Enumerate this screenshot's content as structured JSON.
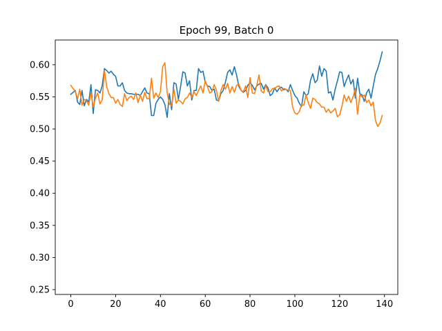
{
  "chart_data": {
    "type": "line",
    "title": "Epoch 99, Batch 0",
    "xlabel": "",
    "ylabel": "",
    "xlim": [
      -6.95,
      145.95
    ],
    "ylim": [
      0.2425,
      0.6385
    ],
    "x_ticks": [
      0,
      20,
      40,
      60,
      80,
      100,
      120,
      140
    ],
    "y_ticks": [
      0.25,
      0.3,
      0.35,
      0.4,
      0.45,
      0.5,
      0.55,
      0.6
    ],
    "y_tick_labels": [
      "0.25",
      "0.30",
      "0.35",
      "0.40",
      "0.45",
      "0.50",
      "0.55",
      "0.60"
    ],
    "grid": false,
    "legend": "none",
    "series": [
      {
        "color": "#1f77b4",
        "values": [
          0.554,
          0.557,
          0.56,
          0.542,
          0.538,
          0.56,
          0.536,
          0.546,
          0.542,
          0.569,
          0.524,
          0.561,
          0.56,
          0.556,
          0.567,
          0.594,
          0.591,
          0.587,
          0.59,
          0.585,
          0.582,
          0.567,
          0.567,
          0.572,
          0.56,
          0.556,
          0.555,
          0.555,
          0.554,
          0.554,
          0.554,
          0.552,
          0.558,
          0.564,
          0.556,
          0.555,
          0.521,
          0.521,
          0.54,
          0.546,
          0.55,
          0.546,
          0.538,
          0.518,
          0.555,
          0.53,
          0.572,
          0.57,
          0.546,
          0.566,
          0.589,
          0.587,
          0.567,
          0.575,
          0.545,
          0.56,
          0.56,
          0.594,
          0.588,
          0.59,
          0.573,
          0.567,
          0.566,
          0.56,
          0.562,
          0.545,
          0.544,
          0.555,
          0.56,
          0.573,
          0.588,
          0.592,
          0.584,
          0.597,
          0.584,
          0.566,
          0.56,
          0.557,
          0.56,
          0.568,
          0.572,
          0.568,
          0.561,
          0.567,
          0.57,
          0.571,
          0.562,
          0.569,
          0.564,
          0.552,
          0.555,
          0.564,
          0.558,
          0.563,
          0.565,
          0.561,
          0.562,
          0.558,
          0.569,
          0.56,
          0.552,
          0.548,
          0.54,
          0.535,
          0.558,
          0.552,
          0.555,
          0.576,
          0.586,
          0.572,
          0.576,
          0.598,
          0.582,
          0.594,
          0.59,
          0.556,
          0.558,
          0.545,
          0.562,
          0.575,
          0.589,
          0.588,
          0.566,
          0.576,
          0.584,
          0.57,
          0.577,
          0.548,
          0.579,
          0.555,
          0.553,
          0.543,
          0.556,
          0.562,
          0.548,
          0.567,
          0.585,
          0.594,
          0.606,
          0.62
        ]
      },
      {
        "color": "#ff7f0e",
        "values": [
          0.568,
          0.563,
          0.558,
          0.547,
          0.562,
          0.537,
          0.546,
          0.544,
          0.537,
          0.557,
          0.534,
          0.548,
          0.556,
          0.539,
          0.545,
          0.591,
          0.566,
          0.555,
          0.549,
          0.549,
          0.54,
          0.546,
          0.538,
          0.535,
          0.555,
          0.544,
          0.549,
          0.551,
          0.546,
          0.556,
          0.541,
          0.553,
          0.543,
          0.557,
          0.547,
          0.547,
          0.579,
          0.548,
          0.556,
          0.549,
          0.558,
          0.597,
          0.603,
          0.556,
          0.539,
          0.536,
          0.562,
          0.54,
          0.545,
          0.543,
          0.539,
          0.547,
          0.549,
          0.556,
          0.549,
          0.558,
          0.552,
          0.56,
          0.567,
          0.556,
          0.575,
          0.566,
          0.556,
          0.558,
          0.569,
          0.56,
          0.543,
          0.56,
          0.569,
          0.562,
          0.571,
          0.556,
          0.566,
          0.557,
          0.568,
          0.57,
          0.56,
          0.558,
          0.567,
          0.549,
          0.58,
          0.556,
          0.555,
          0.568,
          0.584,
          0.559,
          0.556,
          0.568,
          0.558,
          0.558,
          0.563,
          0.563,
          0.566,
          0.567,
          0.559,
          0.563,
          0.562,
          0.56,
          0.56,
          0.534,
          0.525,
          0.523,
          0.527,
          0.538,
          0.537,
          0.553,
          0.541,
          0.532,
          0.548,
          0.546,
          0.541,
          0.539,
          0.534,
          0.534,
          0.526,
          0.531,
          0.525,
          0.528,
          0.532,
          0.519,
          0.522,
          0.535,
          0.553,
          0.543,
          0.551,
          0.541,
          0.55,
          0.563,
          0.523,
          0.553,
          0.55,
          0.553,
          0.541,
          0.545,
          0.536,
          0.542,
          0.513,
          0.504,
          0.509,
          0.521
        ]
      }
    ]
  }
}
